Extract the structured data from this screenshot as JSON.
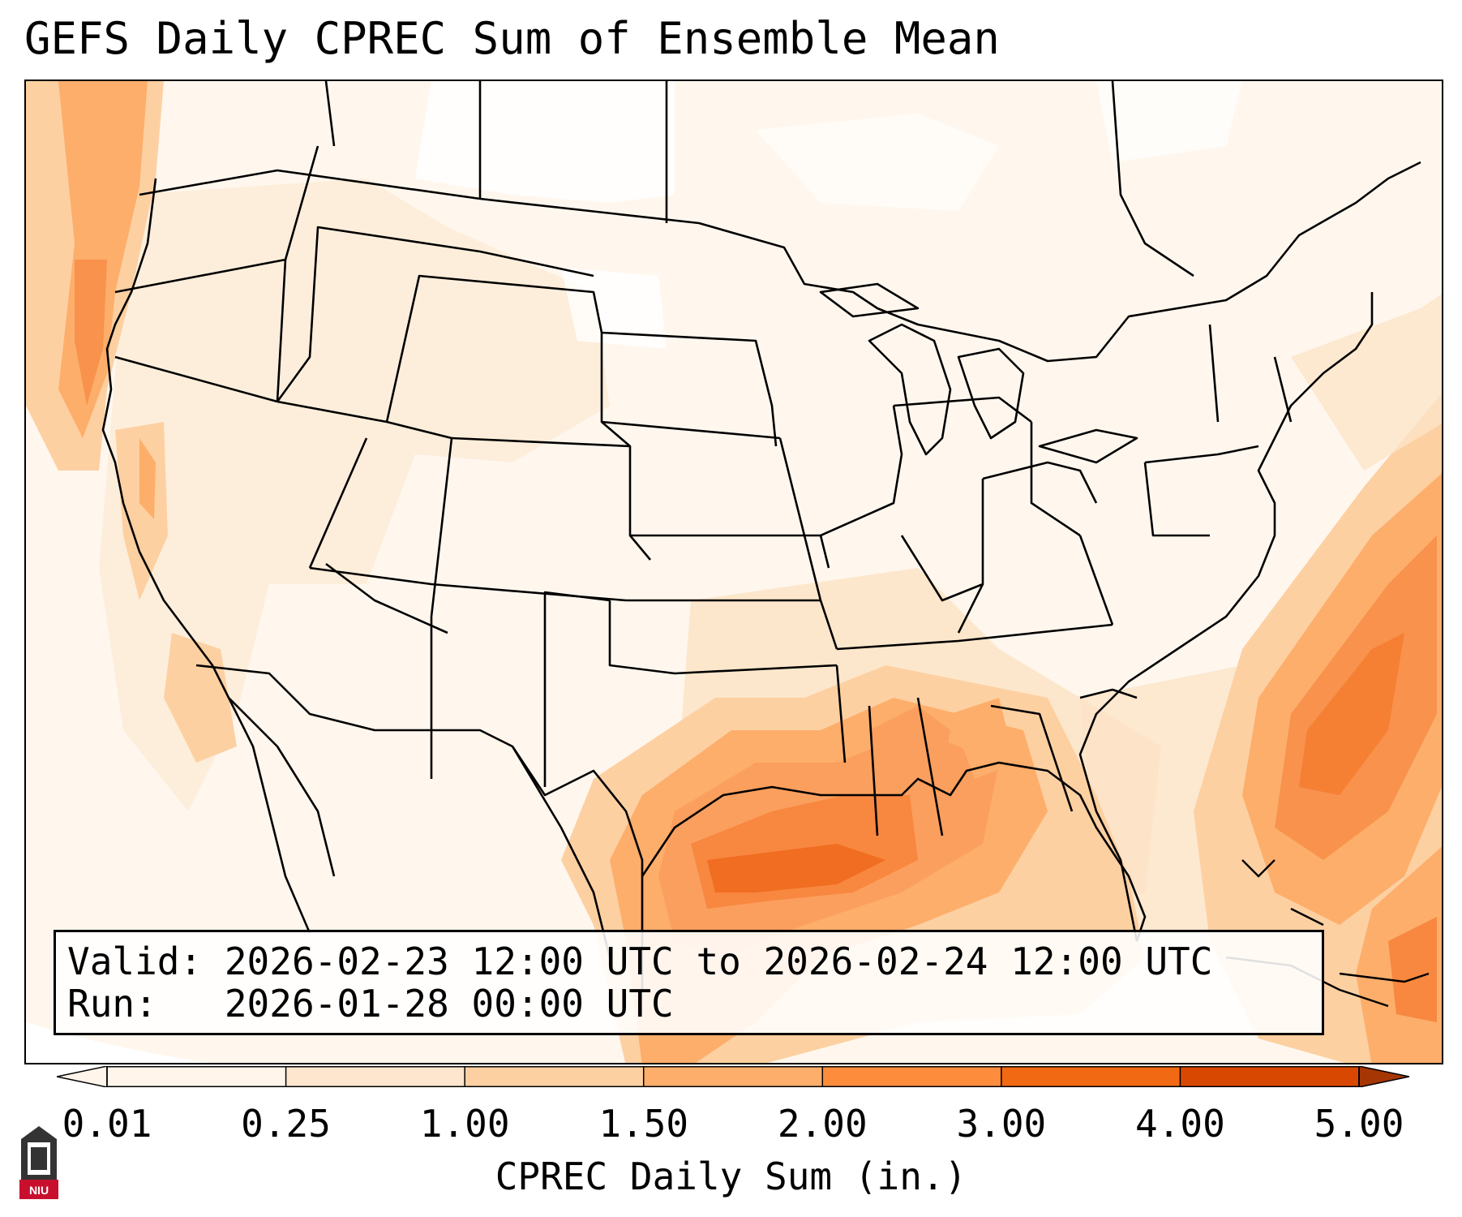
{
  "title": "GEFS Daily CPREC Sum of Ensemble Mean",
  "info_box": {
    "valid_line": "Valid: 2026-02-23 12:00 UTC to 2026-02-24 12:00 UTC",
    "run_line": "Run:   2026-01-28 00:00 UTC"
  },
  "colorbar": {
    "label": "CPREC Daily Sum (in.)",
    "ticks": [
      "0.01",
      "0.25",
      "1.00",
      "1.50",
      "2.00",
      "3.00",
      "4.00",
      "5.00"
    ],
    "colors": [
      "#fff5eb",
      "#fee6ce",
      "#fdd0a2",
      "#fdae6b",
      "#fd8d3c",
      "#f16913",
      "#d94801",
      "#a63603"
    ],
    "extend": "both"
  },
  "logo": {
    "name": "niu-logo",
    "text": "NIU"
  },
  "map": {
    "type": "precipitation-map",
    "projection": "lambert-conformal",
    "region": "CONUS"
  }
}
